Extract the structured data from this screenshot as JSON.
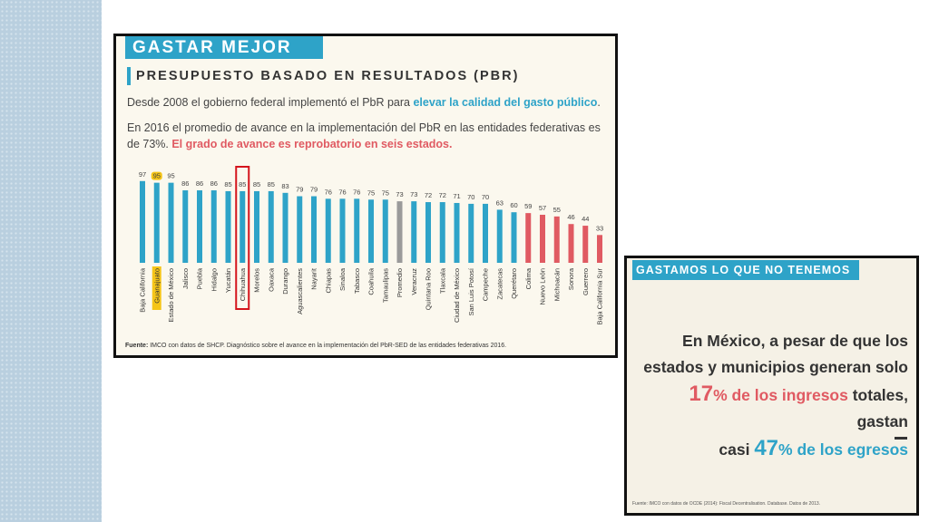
{
  "left_panel": {
    "header": "GASTAR MEJOR",
    "subtitle": "PRESUPUESTO BASADO EN RESULTADOS (PBR)",
    "paragraph1": [
      "Desde 2008 el gobierno federal implementó el PbR para ",
      "elevar la calidad del gasto público",
      "."
    ],
    "paragraph2": [
      "En 2016 el promedio de avance en la implementación del PbR en las entidades federativas es de 73%. ",
      "El grado de avance es reprobatorio en seis estados."
    ],
    "source_label": "Fuente:",
    "source": " IMCO con datos de SHCP. Diagnóstico sobre el avance en la implementación del PbR-SED de las entidades federativas 2016."
  },
  "chart_data": {
    "type": "bar",
    "categories": [
      "Baja California",
      "Guanajuato",
      "Estado de México",
      "Jalisco",
      "Puebla",
      "Hidalgo",
      "Yucatán",
      "Chihuahua",
      "Morelos",
      "Oaxaca",
      "Durango",
      "Aguascalientes",
      "Nayarit",
      "Chiapas",
      "Sinaloa",
      "Tabasco",
      "Coahuila",
      "Tamaulipas",
      "Promedio",
      "Veracruz",
      "Quintana Roo",
      "Tlaxcala",
      "Ciudad de México",
      "San Luis Potosí",
      "Campeche",
      "Zacatecas",
      "Querétaro",
      "Colima",
      "Nuevo León",
      "Michoacán",
      "Sonora",
      "Guerrero",
      "Baja California Sur"
    ],
    "values": [
      97,
      95,
      95,
      86,
      86,
      86,
      85,
      85,
      85,
      85,
      83,
      79,
      79,
      76,
      76,
      76,
      75,
      75,
      73,
      73,
      72,
      72,
      71,
      70,
      70,
      63,
      60,
      59,
      57,
      55,
      46,
      44,
      33
    ],
    "colors": [
      "#2ea3c8",
      "#2ea3c8",
      "#2ea3c8",
      "#2ea3c8",
      "#2ea3c8",
      "#2ea3c8",
      "#2ea3c8",
      "#2ea3c8",
      "#2ea3c8",
      "#2ea3c8",
      "#2ea3c8",
      "#2ea3c8",
      "#2ea3c8",
      "#2ea3c8",
      "#2ea3c8",
      "#2ea3c8",
      "#2ea3c8",
      "#2ea3c8",
      "#9a9a9a",
      "#2ea3c8",
      "#2ea3c8",
      "#2ea3c8",
      "#2ea3c8",
      "#2ea3c8",
      "#2ea3c8",
      "#2ea3c8",
      "#2ea3c8",
      "#e05a62",
      "#e05a62",
      "#e05a62",
      "#e05a62",
      "#e05a62",
      "#e05a62"
    ],
    "ylim": [
      0,
      100
    ]
  },
  "right_panel": {
    "header": "GASTAMOS LO QUE NO TENEMOS",
    "line1": "En México, a pesar de que los",
    "line2": "estados y municipios generan solo",
    "line3": [
      "17",
      "% de los ingresos",
      " totales, gastan"
    ],
    "line4": [
      "casi ",
      "47",
      "% de los egresos"
    ],
    "source": "Fuente: IMCO con datos de OCDE (2014): Fiscal Decentralisation. Database. Datos de 2013."
  }
}
